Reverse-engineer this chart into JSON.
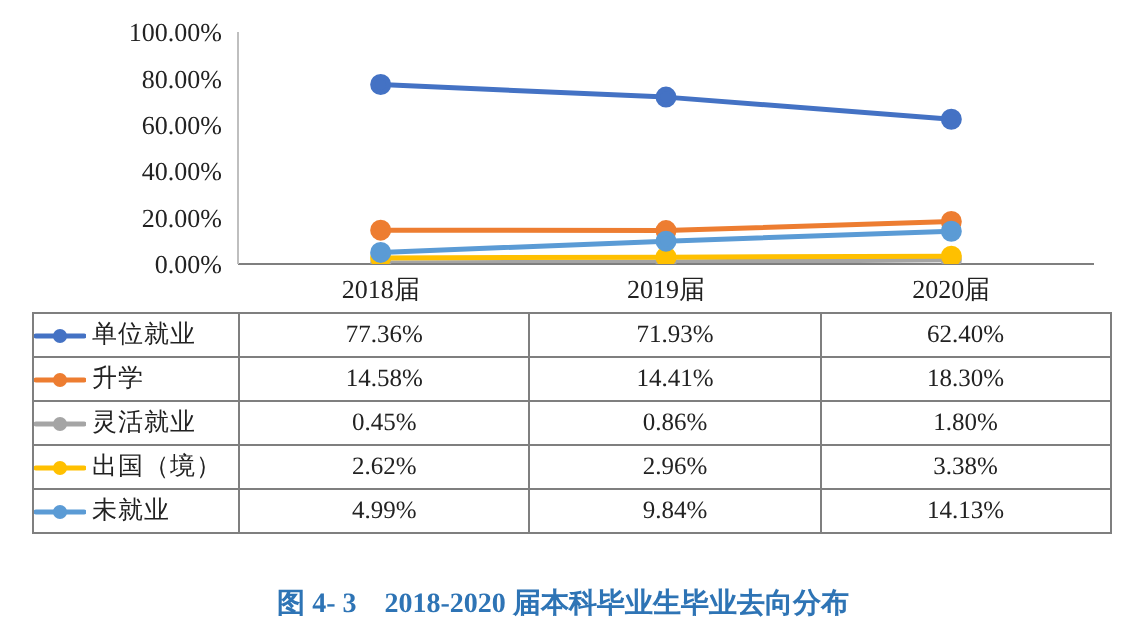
{
  "chart_data": {
    "type": "line",
    "title": "图 4- 3　2018-2020 届本科毕业生毕业去向分布",
    "categories": [
      "2018届",
      "2019届",
      "2020届"
    ],
    "series": [
      {
        "name": "单位就业",
        "color": "#4472c4",
        "values": [
          77.36,
          71.93,
          62.4
        ],
        "value_labels": [
          "77.36%",
          "71.93%",
          "62.40%"
        ]
      },
      {
        "name": "升学",
        "color": "#ed7d31",
        "values": [
          14.58,
          14.41,
          18.3
        ],
        "value_labels": [
          "14.58%",
          "14.41%",
          "18.30%"
        ]
      },
      {
        "name": "灵活就业",
        "color": "#a5a5a5",
        "values": [
          0.45,
          0.86,
          1.8
        ],
        "value_labels": [
          "0.45%",
          "0.86%",
          "1.80%"
        ]
      },
      {
        "name": "出国（境）",
        "color": "#ffc000",
        "values": [
          2.62,
          2.96,
          3.38
        ],
        "value_labels": [
          "2.62%",
          "2.96%",
          "3.38%"
        ]
      },
      {
        "name": "未就业",
        "color": "#5b9bd5",
        "values": [
          4.99,
          9.84,
          14.13
        ],
        "value_labels": [
          "4.99%",
          "9.84%",
          "14.13%"
        ]
      }
    ],
    "ylim": [
      0,
      100
    ],
    "yticks": [
      {
        "value": 0,
        "label": "0.00%"
      },
      {
        "value": 20,
        "label": "20.00%"
      },
      {
        "value": 40,
        "label": "40.00%"
      },
      {
        "value": 60,
        "label": "60.00%"
      },
      {
        "value": 80,
        "label": "80.00%"
      },
      {
        "value": 100,
        "label": "100.00%"
      }
    ],
    "legend": "bottom",
    "marker": "circle",
    "grid": false
  }
}
